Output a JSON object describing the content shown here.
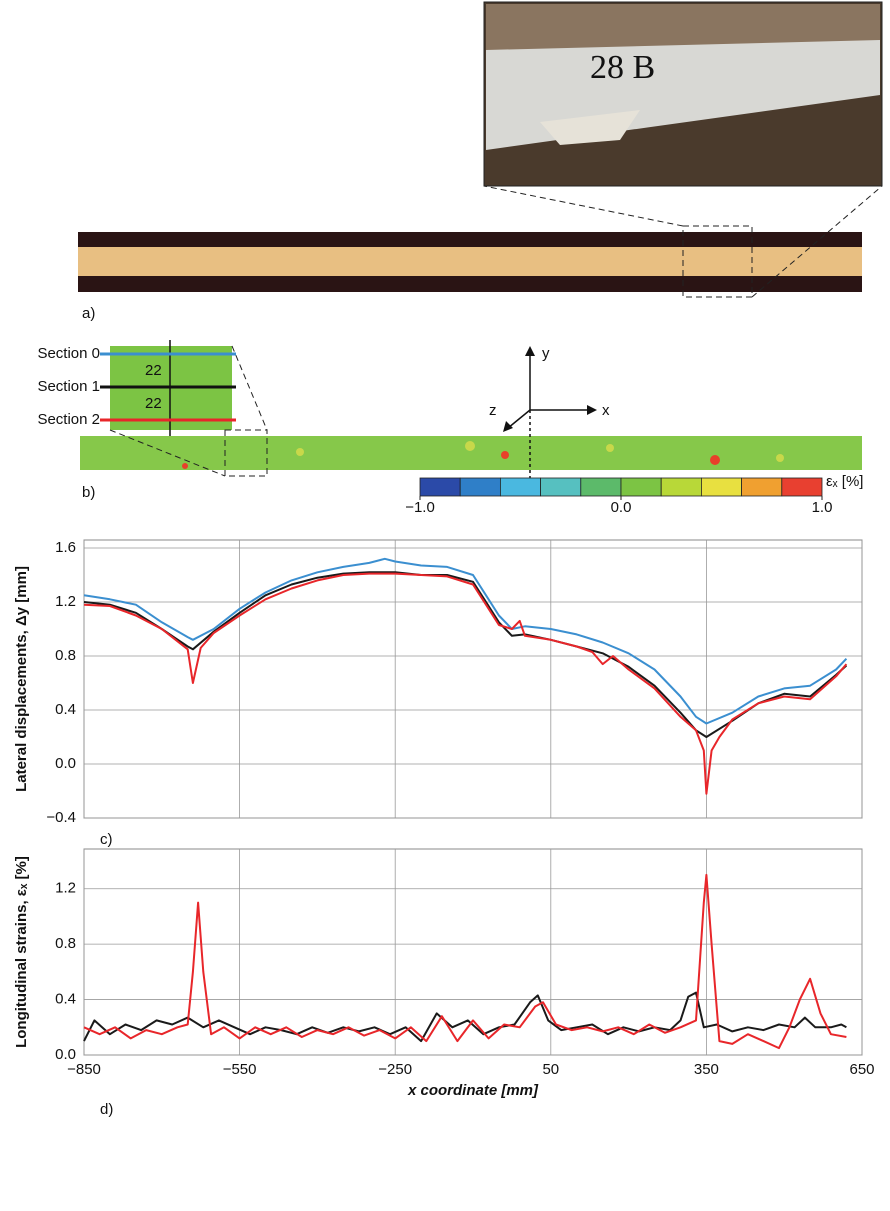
{
  "panel_a": {
    "label": "a)",
    "photo_text": "28 B"
  },
  "panel_b": {
    "label": "b)",
    "sections": [
      "Section 0",
      "Section 1",
      "Section 2"
    ],
    "spacing": [
      "22",
      "22"
    ],
    "axes": {
      "y": "y",
      "x": "x",
      "z": "z"
    },
    "colorbar": {
      "label": "εₓ [%]",
      "lim": [
        -1,
        1
      ],
      "ticks": [
        {
          "value": -1,
          "label": "−1.0"
        },
        {
          "value": 0,
          "label": "0.0"
        },
        {
          "value": 1,
          "label": "1.0"
        }
      ]
    }
  },
  "chart_data": [
    {
      "type": "line",
      "panel": "c)",
      "ylabel": "Lateral displacements, Δy [mm]",
      "xlim": [
        -850,
        650
      ],
      "xticks": [
        -850,
        -550,
        -250,
        50,
        350,
        650
      ],
      "xtick_labels": false,
      "ylim": [
        -0.4,
        1.6
      ],
      "yticks": [
        {
          "value": -0.4,
          "label": "−0.4"
        },
        {
          "value": 0,
          "label": "0.0"
        },
        0.4,
        0.8,
        1.2,
        1.6
      ],
      "grid": true,
      "series": [
        {
          "name": "Section 0",
          "color": "#3b8fd0",
          "x": [
            -850,
            -800,
            -750,
            -700,
            -650,
            -640,
            -600,
            -550,
            -500,
            -450,
            -400,
            -350,
            -300,
            -270,
            -250,
            -200,
            -150,
            -100,
            -75,
            -50,
            -25,
            0,
            50,
            100,
            150,
            200,
            250,
            300,
            330,
            350,
            400,
            450,
            500,
            550,
            600,
            620
          ],
          "values": [
            1.25,
            1.22,
            1.18,
            1.05,
            0.94,
            0.92,
            1.0,
            1.15,
            1.27,
            1.36,
            1.42,
            1.46,
            1.49,
            1.52,
            1.5,
            1.47,
            1.46,
            1.4,
            1.25,
            1.1,
            1.0,
            1.02,
            1.0,
            0.96,
            0.9,
            0.82,
            0.7,
            0.5,
            0.35,
            0.3,
            0.38,
            0.5,
            0.56,
            0.58,
            0.7,
            0.78
          ]
        },
        {
          "name": "Section 1",
          "color": "#1a1a1a",
          "x": [
            -850,
            -800,
            -750,
            -700,
            -650,
            -640,
            -600,
            -550,
            -500,
            -450,
            -400,
            -350,
            -300,
            -250,
            -200,
            -150,
            -100,
            -75,
            -50,
            -25,
            0,
            50,
            100,
            150,
            200,
            250,
            300,
            330,
            350,
            400,
            450,
            500,
            550,
            600,
            620
          ],
          "values": [
            1.2,
            1.18,
            1.12,
            1.0,
            0.87,
            0.85,
            0.98,
            1.12,
            1.25,
            1.33,
            1.38,
            1.41,
            1.42,
            1.42,
            1.4,
            1.4,
            1.35,
            1.2,
            1.05,
            0.95,
            0.96,
            0.92,
            0.87,
            0.82,
            0.72,
            0.58,
            0.38,
            0.25,
            0.2,
            0.32,
            0.45,
            0.52,
            0.5,
            0.66,
            0.73
          ]
        },
        {
          "name": "Section 2",
          "color": "#e8262a",
          "x": [
            -850,
            -800,
            -750,
            -700,
            -650,
            -640,
            -625,
            -600,
            -550,
            -500,
            -450,
            -400,
            -350,
            -300,
            -250,
            -200,
            -150,
            -100,
            -75,
            -50,
            -25,
            -10,
            0,
            50,
            100,
            130,
            150,
            170,
            200,
            250,
            300,
            330,
            345,
            350,
            360,
            375,
            400,
            450,
            500,
            550,
            600,
            620
          ],
          "values": [
            1.18,
            1.17,
            1.1,
            1.0,
            0.85,
            0.6,
            0.86,
            0.97,
            1.1,
            1.22,
            1.3,
            1.36,
            1.4,
            1.41,
            1.41,
            1.4,
            1.39,
            1.33,
            1.18,
            1.03,
            1.0,
            1.06,
            0.95,
            0.92,
            0.87,
            0.83,
            0.74,
            0.8,
            0.7,
            0.56,
            0.35,
            0.25,
            0.1,
            -0.22,
            0.1,
            0.2,
            0.33,
            0.45,
            0.5,
            0.48,
            0.65,
            0.74
          ]
        }
      ]
    },
    {
      "type": "line",
      "panel": "d)",
      "ylabel": "Longitudinal strains, εₓ [%]",
      "xlabel": "x coordinate [mm]",
      "xlim": [
        -850,
        650
      ],
      "xticks": [
        {
          "value": -850,
          "label": "−850"
        },
        {
          "value": -550,
          "label": "−550"
        },
        {
          "value": -250,
          "label": "−250"
        },
        50,
        350,
        650
      ],
      "xtick_labels": true,
      "ylim": [
        0,
        1.4
      ],
      "yticks": [
        {
          "value": 0,
          "label": "0.0"
        },
        0.4,
        0.8,
        1.2
      ],
      "grid": true,
      "series": [
        {
          "name": "Section 1",
          "color": "#1a1a1a",
          "x": [
            -850,
            -830,
            -800,
            -770,
            -740,
            -710,
            -680,
            -650,
            -620,
            -590,
            -560,
            -530,
            -500,
            -470,
            -440,
            -410,
            -380,
            -350,
            -320,
            -290,
            -260,
            -230,
            -200,
            -170,
            -140,
            -110,
            -80,
            -50,
            -20,
            10,
            25,
            45,
            70,
            100,
            130,
            160,
            190,
            220,
            250,
            280,
            300,
            315,
            330,
            345,
            370,
            400,
            430,
            460,
            490,
            520,
            540,
            560,
            590,
            610,
            620
          ],
          "values": [
            0.1,
            0.25,
            0.15,
            0.22,
            0.18,
            0.25,
            0.22,
            0.27,
            0.2,
            0.25,
            0.2,
            0.15,
            0.2,
            0.18,
            0.15,
            0.2,
            0.16,
            0.2,
            0.17,
            0.2,
            0.15,
            0.2,
            0.1,
            0.3,
            0.2,
            0.25,
            0.15,
            0.2,
            0.22,
            0.38,
            0.43,
            0.25,
            0.18,
            0.2,
            0.22,
            0.15,
            0.2,
            0.17,
            0.2,
            0.18,
            0.25,
            0.42,
            0.45,
            0.2,
            0.22,
            0.17,
            0.2,
            0.18,
            0.22,
            0.2,
            0.27,
            0.2,
            0.2,
            0.22,
            0.2
          ]
        },
        {
          "name": "Section 2",
          "color": "#e8262a",
          "x": [
            -850,
            -820,
            -790,
            -760,
            -730,
            -700,
            -670,
            -650,
            -640,
            -630,
            -620,
            -605,
            -580,
            -550,
            -520,
            -490,
            -460,
            -430,
            -400,
            -370,
            -340,
            -310,
            -280,
            -250,
            -220,
            -190,
            -160,
            -130,
            -100,
            -70,
            -40,
            -10,
            20,
            35,
            60,
            90,
            120,
            150,
            180,
            210,
            240,
            270,
            300,
            330,
            345,
            350,
            360,
            375,
            400,
            430,
            460,
            490,
            510,
            530,
            550,
            570,
            590,
            620
          ],
          "values": [
            0.2,
            0.15,
            0.2,
            0.12,
            0.18,
            0.15,
            0.2,
            0.22,
            0.6,
            1.1,
            0.6,
            0.15,
            0.2,
            0.12,
            0.2,
            0.15,
            0.2,
            0.13,
            0.18,
            0.15,
            0.2,
            0.14,
            0.18,
            0.12,
            0.2,
            0.1,
            0.28,
            0.1,
            0.25,
            0.12,
            0.22,
            0.2,
            0.35,
            0.38,
            0.22,
            0.18,
            0.2,
            0.17,
            0.2,
            0.15,
            0.22,
            0.16,
            0.2,
            0.25,
            1.1,
            1.3,
            0.8,
            0.1,
            0.08,
            0.15,
            0.1,
            0.05,
            0.2,
            0.4,
            0.55,
            0.3,
            0.15,
            0.13
          ]
        }
      ]
    }
  ]
}
